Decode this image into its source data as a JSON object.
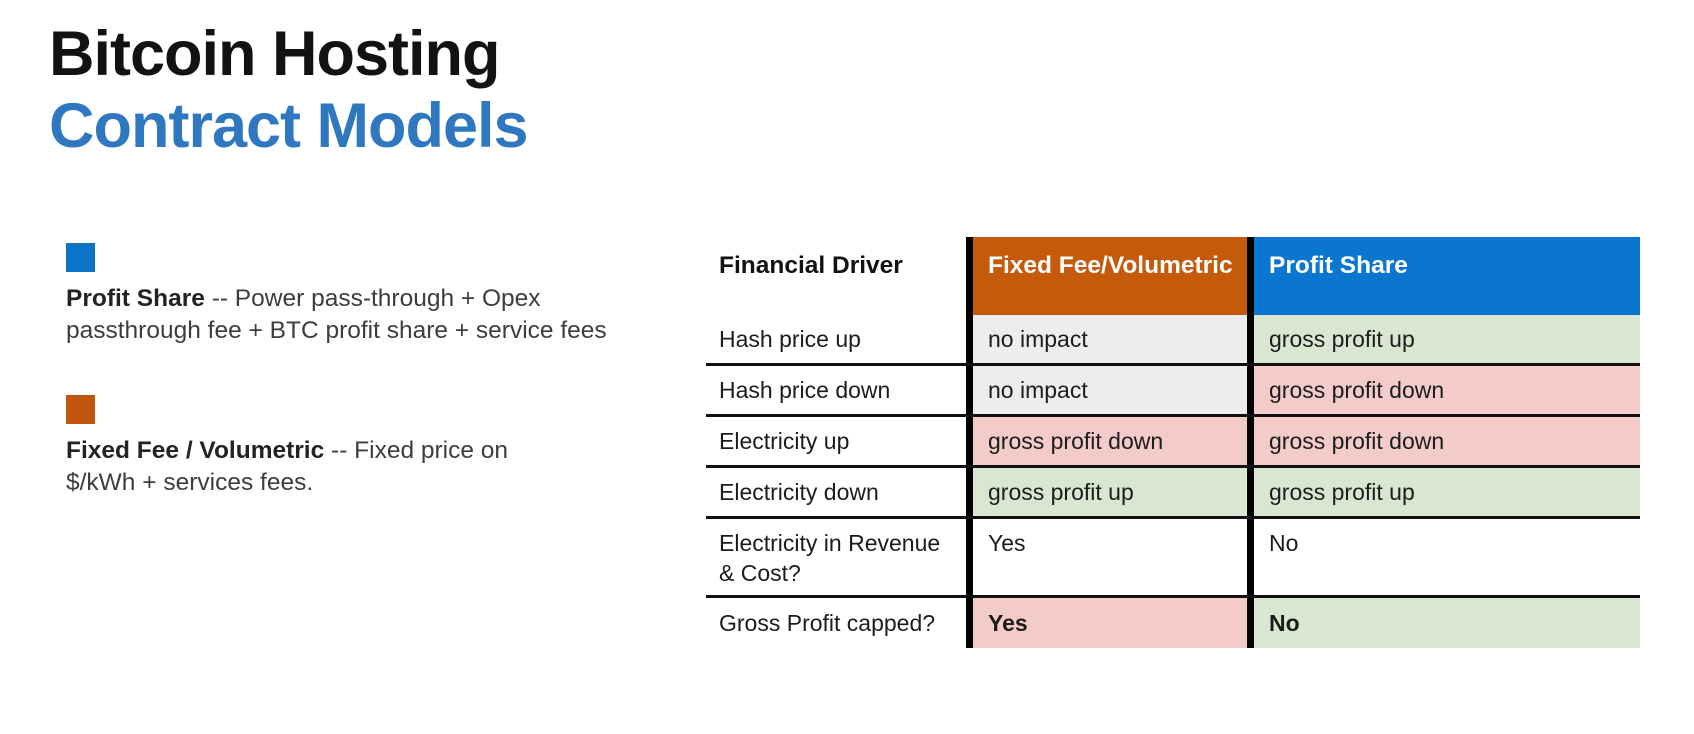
{
  "title": {
    "line1": "Bitcoin Hosting",
    "line2": "Contract Models",
    "line1_color": "#121212",
    "line2_color": "#2F77BE"
  },
  "legend": {
    "items": [
      {
        "swatch_color": "#0B74C6",
        "term": "Profit Share",
        "description": "-- Power pass-through + Opex passthrough fee + BTC profit share + service fees"
      },
      {
        "swatch_color": "#C1570E",
        "term": "Fixed Fee / Volumetric",
        "description": "-- Fixed price on $/kWh + services fees."
      }
    ]
  },
  "table": {
    "columns": [
      {
        "label": "Financial Driver",
        "bg": "#FFFFFF",
        "text_color": "#121212"
      },
      {
        "label": "Fixed Fee/Volumetric",
        "bg": "#C55A0B",
        "text_color": "#FFFFFF"
      },
      {
        "label": "Profit Share",
        "bg": "#0B76D0",
        "text_color": "#FFFFFF"
      }
    ],
    "tone_colors": {
      "muted": "#EDEDED",
      "good": "#D9E7D2",
      "bad": "#F3CBC9",
      "plain": "#FFFFFF"
    },
    "rows": [
      {
        "driver": "Hash price up",
        "fixed": {
          "text": "no impact",
          "tone": "muted"
        },
        "profit": {
          "text": "gross profit up",
          "tone": "good"
        }
      },
      {
        "driver": "Hash price down",
        "fixed": {
          "text": "no impact",
          "tone": "muted"
        },
        "profit": {
          "text": "gross profit down",
          "tone": "bad"
        }
      },
      {
        "driver": "Electricity up",
        "fixed": {
          "text": "gross profit down",
          "tone": "bad"
        },
        "profit": {
          "text": "gross profit down",
          "tone": "bad"
        }
      },
      {
        "driver": "Electricity down",
        "fixed": {
          "text": "gross profit up",
          "tone": "good"
        },
        "profit": {
          "text": "gross profit up",
          "tone": "good"
        }
      },
      {
        "driver": "Electricity in Revenue & Cost?",
        "fixed": {
          "text": "Yes",
          "tone": "plain"
        },
        "profit": {
          "text": "No",
          "tone": "plain"
        }
      },
      {
        "driver": "Gross Profit capped?",
        "fixed": {
          "text": "Yes",
          "tone": "bad-strong"
        },
        "profit": {
          "text": "No",
          "tone": "good-strong"
        }
      }
    ]
  }
}
